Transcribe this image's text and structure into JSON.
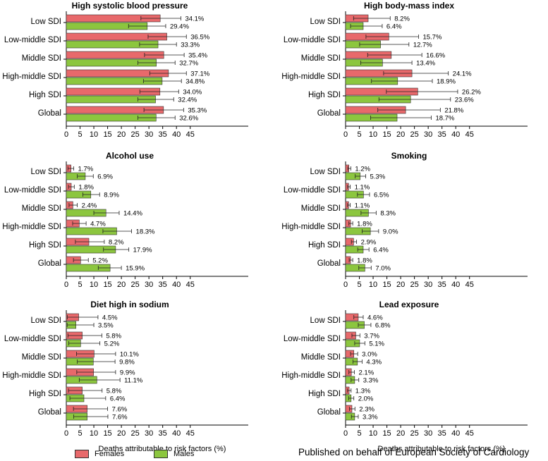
{
  "chart_data": [
    {
      "type": "bar",
      "title": "High systolic blood pressure",
      "categories": [
        "Low SDI",
        "Low-middle SDI",
        "Middle SDI",
        "High-middle SDI",
        "High SDI",
        "Global"
      ],
      "series": [
        {
          "name": "Females",
          "values": [
            34.1,
            36.5,
            35.4,
            37.1,
            34.0,
            35.3
          ],
          "ci_low": [
            27.1,
            29.7,
            28.4,
            30.3,
            26.7,
            28.2
          ],
          "ci_high": [
            41.6,
            43.6,
            42.8,
            43.6,
            40.8,
            42.6
          ]
        },
        {
          "name": "Males",
          "values": [
            29.4,
            33.3,
            32.7,
            34.8,
            32.4,
            32.6
          ],
          "ci_low": [
            22.6,
            26.6,
            26.0,
            28.0,
            26.0,
            26.0
          ],
          "ci_high": [
            36.1,
            40.0,
            39.5,
            41.8,
            39.0,
            39.5
          ]
        }
      ],
      "labels": {
        "Females": [
          "34.1%",
          "36.5%",
          "35.4%",
          "37.1%",
          "34.0%",
          "35.3%"
        ],
        "Males": [
          "29.4%",
          "33.3%",
          "32.7%",
          "34.8%",
          "32.4%",
          "32.6%"
        ]
      },
      "xlabel": "",
      "xlim": [
        0,
        50
      ],
      "xticks": [
        "0",
        "5",
        "10",
        "15",
        "20",
        "25",
        "30",
        "35",
        "40",
        "45"
      ]
    },
    {
      "type": "bar",
      "title": "High body-mass index",
      "categories": [
        "Low SDI",
        "Low-middle SDI",
        "Middle SDI",
        "High-middle SDI",
        "High SDI",
        "Global"
      ],
      "series": [
        {
          "name": "Females",
          "values": [
            8.2,
            15.7,
            16.6,
            24.1,
            26.2,
            21.8
          ],
          "ci_low": [
            2.9,
            7.4,
            8.0,
            13.8,
            14.8,
            11.7
          ],
          "ci_high": [
            16.2,
            26.5,
            27.7,
            37.3,
            40.7,
            34.4
          ]
        },
        {
          "name": "Males",
          "values": [
            6.4,
            12.7,
            13.4,
            18.9,
            23.6,
            18.7
          ],
          "ci_low": [
            1.8,
            5.1,
            5.5,
            9.4,
            12.1,
            9.1
          ],
          "ci_high": [
            13.3,
            23.0,
            24.1,
            31.5,
            38.1,
            31.1
          ]
        }
      ],
      "labels": {
        "Females": [
          "8.2%",
          "15.7%",
          "16.6%",
          "24.1%",
          "26.2%",
          "21.8%"
        ],
        "Males": [
          "6.4%",
          "12.7%",
          "13.4%",
          "18.9%",
          "23.6%",
          "18.7%"
        ]
      },
      "xlabel": "",
      "xlim": [
        0,
        50
      ],
      "xticks": [
        "0",
        "5",
        "10",
        "15",
        "20",
        "25",
        "30",
        "35",
        "40",
        "45"
      ]
    },
    {
      "type": "bar",
      "title": "Alcohol use",
      "categories": [
        "Low SDI",
        "Low-middle SDI",
        "Middle SDI",
        "High-middle SDI",
        "High SDI",
        "Global"
      ],
      "series": [
        {
          "name": "Females",
          "values": [
            1.7,
            1.8,
            2.4,
            4.7,
            8.2,
            5.2
          ],
          "ci_low": [
            0.6,
            0.8,
            1.0,
            2.3,
            3.3,
            2.6
          ],
          "ci_high": [
            2.7,
            2.9,
            4.0,
            7.2,
            13.8,
            8.0
          ]
        },
        {
          "name": "Males",
          "values": [
            6.9,
            8.9,
            14.4,
            18.3,
            17.9,
            15.9
          ],
          "ci_low": [
            4.0,
            6.0,
            10.0,
            13.3,
            13.5,
            11.6
          ],
          "ci_high": [
            9.8,
            12.1,
            19.2,
            23.7,
            22.7,
            20.0
          ]
        }
      ],
      "labels": {
        "Females": [
          "1.7%",
          "1.8%",
          "2.4%",
          "4.7%",
          "8.2%",
          "5.2%"
        ],
        "Males": [
          "6.9%",
          "8.9%",
          "14.4%",
          "18.3%",
          "17.9%",
          "15.9%"
        ]
      },
      "xlabel": "",
      "xlim": [
        0,
        50
      ],
      "xticks": [
        "0",
        "5",
        "10",
        "15",
        "20",
        "25",
        "30",
        "35",
        "40",
        "45"
      ]
    },
    {
      "type": "bar",
      "title": "Smoking",
      "categories": [
        "Low SDI",
        "Low-middle SDI",
        "Middle SDI",
        "High-middle SDI",
        "High SDI",
        "Global"
      ],
      "series": [
        {
          "name": "Females",
          "values": [
            1.2,
            1.1,
            1.1,
            1.8,
            2.9,
            1.8
          ],
          "ci_low": [
            0.8,
            0.7,
            0.7,
            1.2,
            2.1,
            1.3
          ],
          "ci_high": [
            1.9,
            1.7,
            1.7,
            2.6,
            4.0,
            2.6
          ]
        },
        {
          "name": "Males",
          "values": [
            5.3,
            6.5,
            8.3,
            9.0,
            6.4,
            7.0
          ],
          "ci_low": [
            3.5,
            4.3,
            5.6,
            6.0,
            4.4,
            4.8
          ],
          "ci_high": [
            7.3,
            8.7,
            11.1,
            12.0,
            8.5,
            9.3
          ]
        }
      ],
      "labels": {
        "Females": [
          "1.2%",
          "1.1%",
          "1.1%",
          "1.8%",
          "2.9%",
          "1.8%"
        ],
        "Males": [
          "5.3%",
          "6.5%",
          "8.3%",
          "9.0%",
          "6.4%",
          "7.0%"
        ]
      },
      "xlabel": "",
      "xlim": [
        0,
        50
      ],
      "xticks": [
        "0",
        "5",
        "10",
        "15",
        "20",
        "25",
        "30",
        "35",
        "40",
        "45"
      ]
    },
    {
      "type": "bar",
      "title": "Diet high in sodium",
      "categories": [
        "Low SDI",
        "Low-middle SDI",
        "Middle SDI",
        "High-middle SDI",
        "High SDI",
        "Global"
      ],
      "series": [
        {
          "name": "Females",
          "values": [
            4.5,
            5.8,
            10.1,
            9.9,
            5.8,
            7.6
          ],
          "ci_low": [
            0.4,
            0.6,
            3.7,
            3.8,
            0.8,
            2.6
          ],
          "ci_high": [
            11.5,
            12.9,
            17.9,
            17.9,
            13.0,
            15.0
          ]
        },
        {
          "name": "Males",
          "values": [
            3.5,
            5.2,
            9.8,
            11.1,
            6.4,
            7.6
          ],
          "ci_low": [
            0.3,
            0.9,
            4.0,
            4.7,
            1.3,
            2.7
          ],
          "ci_high": [
            10.0,
            12.2,
            17.7,
            19.5,
            14.3,
            15.1
          ]
        }
      ],
      "labels": {
        "Females": [
          "4.5%",
          "5.8%",
          "10.1%",
          "9.9%",
          "5.8%",
          "7.6%"
        ],
        "Males": [
          "3.5%",
          "5.2%",
          "9.8%",
          "11.1%",
          "6.4%",
          "7.6%"
        ]
      },
      "xlabel": "Deaths attributable to risk factors (%)",
      "xlim": [
        0,
        50
      ],
      "xticks": [
        "0",
        "5",
        "10",
        "15",
        "20",
        "25",
        "30",
        "35",
        "40",
        "45"
      ]
    },
    {
      "type": "bar",
      "title": "Lead exposure",
      "categories": [
        "Low SDI",
        "Low-middle SDI",
        "Middle SDI",
        "High-middle SDI",
        "High SDI",
        "Global"
      ],
      "series": [
        {
          "name": "Females",
          "values": [
            4.6,
            3.7,
            3.0,
            2.1,
            1.3,
            2.3
          ],
          "ci_low": [
            3.0,
            2.3,
            1.8,
            1.2,
            0.7,
            1.4
          ],
          "ci_high": [
            6.4,
            5.2,
            4.4,
            3.2,
            2.0,
            3.4
          ]
        },
        {
          "name": "Males",
          "values": [
            6.8,
            5.1,
            4.3,
            3.3,
            2.0,
            3.3
          ],
          "ci_low": [
            4.6,
            3.3,
            2.7,
            2.0,
            1.1,
            2.1
          ],
          "ci_high": [
            9.2,
            7.0,
            6.0,
            4.8,
            3.0,
            4.6
          ]
        }
      ],
      "labels": {
        "Females": [
          "4.6%",
          "3.7%",
          "3.0%",
          "2.1%",
          "1.3%",
          "2.3%"
        ],
        "Males": [
          "6.8%",
          "5.1%",
          "4.3%",
          "3.3%",
          "2.0%",
          "3.3%"
        ]
      },
      "xlabel": "Deaths attributable to risk factors (%)",
      "xlim": [
        0,
        50
      ],
      "xticks": [
        "0",
        "5",
        "10",
        "15",
        "20",
        "25",
        "30",
        "35",
        "40",
        "45"
      ]
    }
  ],
  "legend": {
    "females": "Females",
    "males": "Males"
  },
  "colors": {
    "females": "#e8696b",
    "males": "#8cc63f",
    "axis": "#000000"
  },
  "credit": "Published on behalf of European Society of Cardiology"
}
